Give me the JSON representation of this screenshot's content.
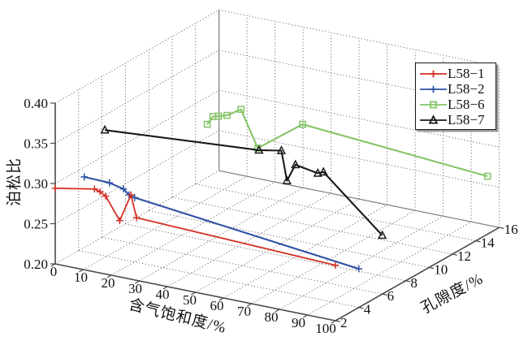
{
  "chart_data": {
    "type": "line",
    "projection": "3d",
    "title": "",
    "xlabel": "含气饱和度/%",
    "ylabel": "孔隙度/%",
    "zlabel": "泊松比",
    "xlim": [
      0,
      100
    ],
    "ylim": [
      2,
      16
    ],
    "zlim": [
      0.2,
      0.4
    ],
    "xticks": [
      0,
      10,
      20,
      30,
      40,
      50,
      60,
      70,
      80,
      90,
      100
    ],
    "yticks": [
      2,
      4,
      6,
      8,
      10,
      12,
      14,
      16
    ],
    "ztick_labels": [
      "0.20",
      "0.25",
      "0.30",
      "0.35",
      "0.40"
    ],
    "grid": true,
    "grid_style": "dotted",
    "legend_position": "upper right",
    "series": [
      {
        "name": "L58−1",
        "color": "#d43026",
        "marker": "plus",
        "porosity_pct": 2,
        "saturation_pct": [
          0,
          14,
          16,
          18,
          23,
          27,
          29,
          100
        ],
        "poisson_ratio": [
          0.294,
          0.303,
          0.301,
          0.297,
          0.27,
          0.305,
          0.278,
          0.269
        ]
      },
      {
        "name": "L58−2",
        "color": "#2e51a5",
        "marker": "plus",
        "porosity_pct": 4,
        "saturation_pct": [
          2,
          11,
          16,
          18,
          20,
          100
        ],
        "poisson_ratio": [
          0.293,
          0.292,
          0.288,
          0.282,
          0.28,
          0.248
        ]
      },
      {
        "name": "L58−6",
        "color": "#85c465",
        "marker": "square",
        "porosity_pct": 15,
        "saturation_pct": [
          0,
          2,
          4,
          7,
          12,
          18,
          34,
          100
        ],
        "poisson_ratio": [
          0.266,
          0.277,
          0.279,
          0.282,
          0.293,
          0.249,
          0.29,
          0.272
        ]
      },
      {
        "name": "L58−7",
        "color": "#1a1a1a",
        "marker": "triangle",
        "porosity_pct": 6,
        "saturation_pct": [
          1,
          56,
          64,
          66,
          69,
          77,
          79,
          100
        ],
        "poisson_ratio": [
          0.334,
          0.348,
          0.353,
          0.317,
          0.339,
          0.334,
          0.337,
          0.273
        ]
      }
    ]
  }
}
